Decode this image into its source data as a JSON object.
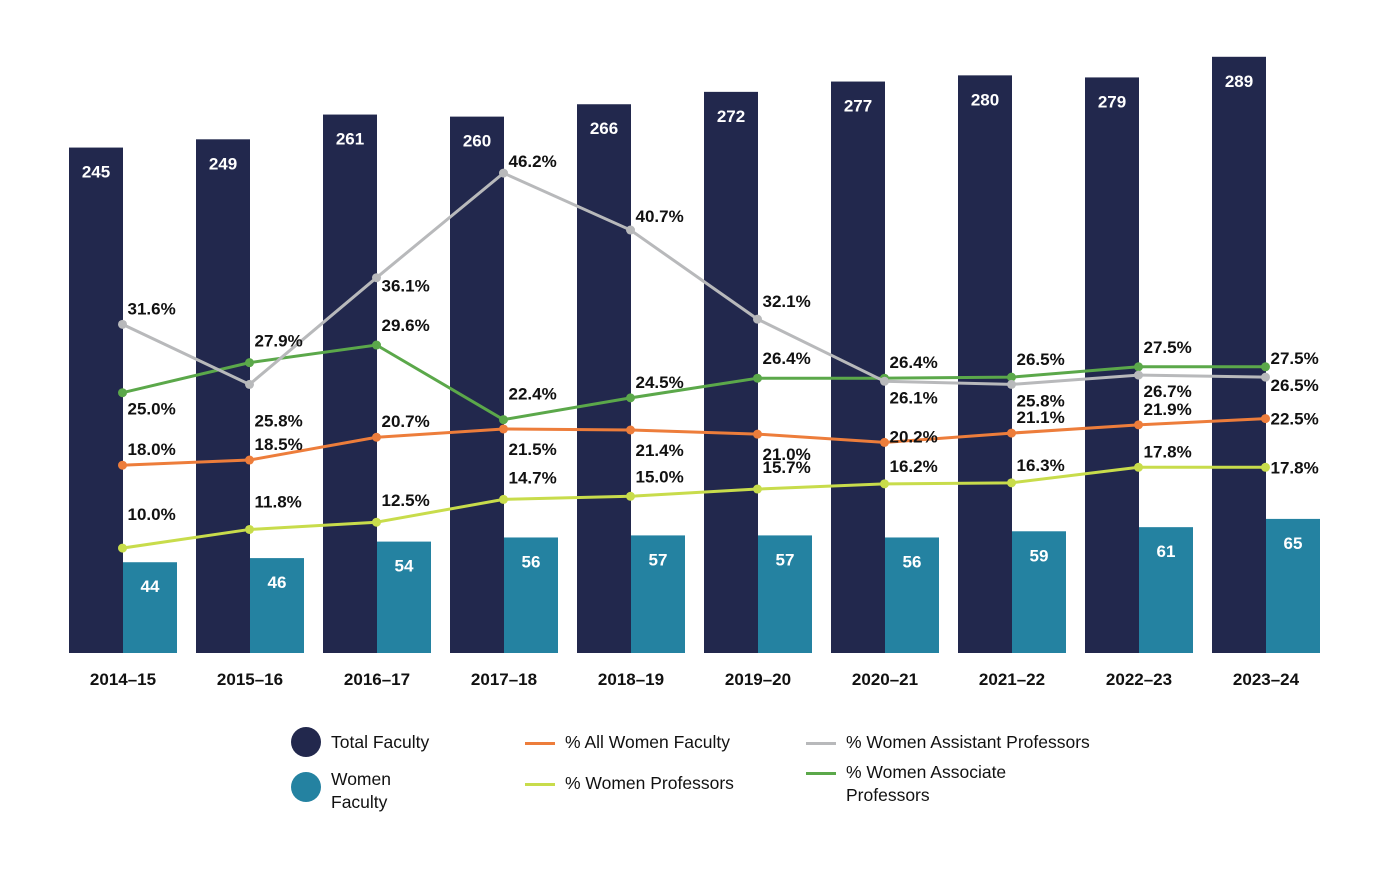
{
  "chart_data": {
    "type": "bar",
    "categories": [
      "2014–15",
      "2015–16",
      "2016–17",
      "2017–18",
      "2018–19",
      "2019–20",
      "2020–21",
      "2021–22",
      "2022–23",
      "2023–24"
    ],
    "bar_series": [
      {
        "name": "Total Faculty",
        "color": "#22284d",
        "values": [
          245,
          249,
          261,
          260,
          266,
          272,
          277,
          280,
          279,
          289
        ]
      },
      {
        "name": "Women Faculty",
        "color": "#2482a1",
        "values": [
          44,
          46,
          54,
          56,
          57,
          57,
          56,
          59,
          61,
          65
        ]
      }
    ],
    "line_series": [
      {
        "name": "% All Women Faculty",
        "color": "#ed7d3b",
        "values": [
          18.0,
          18.5,
          20.7,
          21.5,
          21.4,
          21.0,
          20.2,
          21.1,
          21.9,
          22.5
        ],
        "labels": [
          "18.0%",
          "18.5%",
          "20.7%",
          "21.5%",
          "21.4%",
          "21.0%",
          "20.2%",
          "21.1%",
          "21.9%",
          "22.5%"
        ]
      },
      {
        "name": "% Women Professors",
        "color": "#c8dc4b",
        "values": [
          10.0,
          11.8,
          12.5,
          14.7,
          15.0,
          15.7,
          16.2,
          16.3,
          17.8,
          17.8
        ],
        "labels": [
          "10.0%",
          "11.8%",
          "12.5%",
          "14.7%",
          "15.0%",
          "15.7%",
          "16.2%",
          "16.3%",
          "17.8%",
          "17.8%"
        ]
      },
      {
        "name": "% Women Assistant Professors",
        "color": "#b8b9bb",
        "values": [
          31.6,
          25.8,
          36.1,
          46.2,
          40.7,
          32.1,
          26.1,
          25.8,
          26.7,
          26.5
        ],
        "labels": [
          "31.6%",
          "25.8%",
          "36.1%",
          "46.2%",
          "40.7%",
          "32.1%",
          "26.1%",
          "25.8%",
          "26.7%",
          "26.5%"
        ]
      },
      {
        "name": "% Women Associate Professors",
        "color": "#5ba84a",
        "values": [
          25.0,
          27.9,
          29.6,
          22.4,
          24.5,
          26.4,
          26.4,
          26.5,
          27.5,
          27.5
        ],
        "labels": [
          "25.0%",
          "27.9%",
          "29.6%",
          "22.4%",
          "24.5%",
          "26.4%",
          "26.4%",
          "26.5%",
          "27.5%",
          "27.5%"
        ]
      }
    ],
    "legend": {
      "total_faculty": "Total Faculty",
      "women_faculty_line1": "Women",
      "women_faculty_line2": "Faculty",
      "all_women": "% All Women Faculty",
      "women_professors": "% Women Professors",
      "women_assistant": "% Women Assistant Professors",
      "women_associate_line1": "% Women Associate",
      "women_associate_line2": "Professors"
    },
    "title": "",
    "xlabel": "",
    "ylabel": "",
    "grid": false,
    "legend_placement": "bottom"
  }
}
